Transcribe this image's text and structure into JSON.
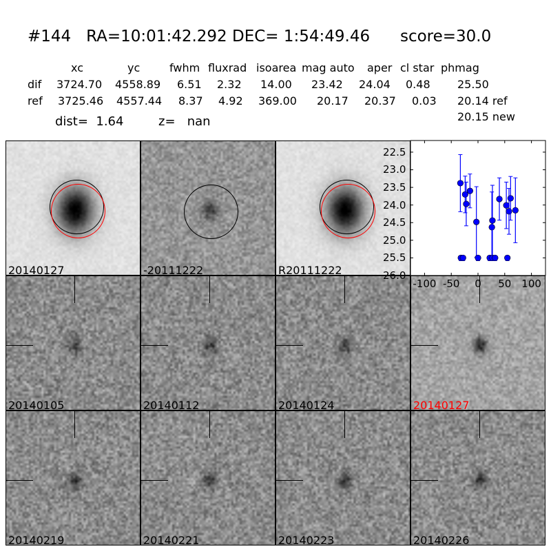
{
  "title": "#144   RA=10:01:42.292 DEC= 1:54:49.46      score=30.0",
  "table": {
    "headers": [
      "xc",
      "yc",
      "fwhm",
      "fluxrad",
      "isoarea",
      "mag auto",
      "aper",
      "cl star",
      "phmag"
    ],
    "rows": [
      {
        "label": "dif",
        "values": [
          "3724.70",
          "4558.89",
          "6.51",
          "2.32",
          "14.00",
          "23.42",
          "24.04",
          "0.48",
          "25.50"
        ]
      },
      {
        "label": "ref",
        "values": [
          "3725.46",
          "4557.44",
          "8.37",
          "4.92",
          "369.00",
          "20.17",
          "20.37",
          "0.03",
          "20.14 ref"
        ]
      }
    ],
    "extra_phmag": "20.15 new",
    "dist": "dist=  1.64",
    "z": "z=   nan"
  },
  "stamps": [
    {
      "label": "20140127",
      "kind": "new",
      "circles": [
        "black",
        "red"
      ]
    },
    {
      "label": "-20111222",
      "kind": "diff",
      "circles": [
        "black"
      ]
    },
    {
      "label": "R20111222",
      "kind": "ref",
      "circles": [
        "black",
        "red"
      ]
    },
    {
      "label": "20140105",
      "kind": "epoch"
    },
    {
      "label": "20140112",
      "kind": "epoch"
    },
    {
      "label": "20140124",
      "kind": "epoch"
    },
    {
      "label": "20140127",
      "kind": "epoch",
      "highlight": "#ff0000"
    },
    {
      "label": "20140219",
      "kind": "epoch"
    },
    {
      "label": "20140221",
      "kind": "epoch"
    },
    {
      "label": "20140223",
      "kind": "epoch"
    },
    {
      "label": "20140226",
      "kind": "epoch"
    }
  ],
  "chart_data": {
    "type": "scatter",
    "xlim": [
      -125,
      125
    ],
    "ylim": [
      26.0,
      22.17
    ],
    "y_inverted": true,
    "xticks": [
      "-100",
      "-50",
      "0",
      "50",
      "100"
    ],
    "yticks": [
      "22.5",
      "23.0",
      "23.5",
      "24.0",
      "24.5",
      "25.0",
      "25.5",
      "26.0"
    ],
    "color": "#0000ff",
    "points": [
      {
        "x": -33,
        "y": 23.38,
        "err": 0.81
      },
      {
        "x": -24,
        "y": 23.7,
        "err": 0.52
      },
      {
        "x": -22,
        "y": 23.97,
        "err": 0.62
      },
      {
        "x": -15,
        "y": 23.6,
        "err": 0.48
      },
      {
        "x": -3,
        "y": 24.48,
        "err": 1.0
      },
      {
        "x": 26,
        "y": 24.63,
        "err": 1.0
      },
      {
        "x": 27,
        "y": 24.44,
        "err": 1.0
      },
      {
        "x": 40,
        "y": 23.83,
        "err": 0.6
      },
      {
        "x": 53,
        "y": 24.01,
        "err": 0.66
      },
      {
        "x": 58,
        "y": 24.18,
        "err": 0.65
      },
      {
        "x": 61,
        "y": 23.81,
        "err": 0.62
      },
      {
        "x": 70,
        "y": 24.15,
        "err": 0.92
      },
      {
        "x": -32,
        "y": 25.5,
        "err": 0
      },
      {
        "x": -28,
        "y": 25.5,
        "err": 0
      },
      {
        "x": 0,
        "y": 25.5,
        "err": 0
      },
      {
        "x": 22,
        "y": 25.5,
        "err": 0
      },
      {
        "x": 27,
        "y": 25.5,
        "err": 0
      },
      {
        "x": 32,
        "y": 25.5,
        "err": 0
      },
      {
        "x": 55,
        "y": 25.5,
        "err": 0
      }
    ]
  }
}
